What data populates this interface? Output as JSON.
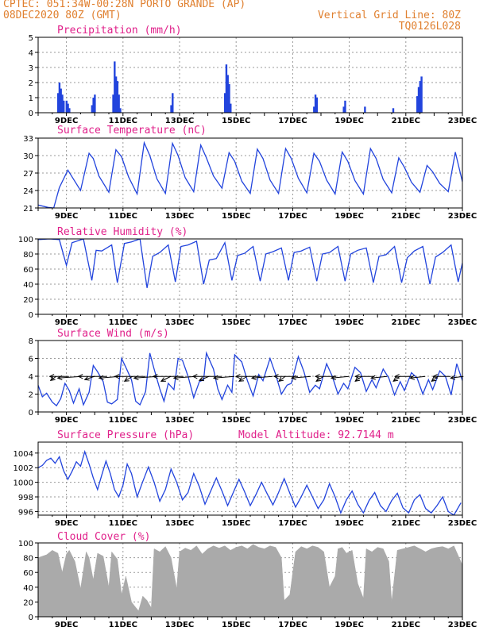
{
  "header": {
    "line1_left": "CPTEC:  051:34W-00:28N  PORTO GRANDE (AP)",
    "line2_left": "08DEC2020 80Z (GMT)",
    "line1_right": "Vertical Grid Line: 80Z",
    "line2_right": "TQ0126L028",
    "model_altitude": "Model Altitude: 92.7144 m"
  },
  "colors": {
    "header": "#e08030",
    "title": "#e0208a",
    "series": "#2244dd",
    "cloud": "#aaaaaa",
    "wind_arrow": "#000000"
  },
  "x_ticks": [
    "9DEC",
    "11DEC",
    "13DEC",
    "15DEC",
    "17DEC",
    "19DEC",
    "21DEC",
    "23DEC"
  ],
  "chart_data": [
    {
      "type": "bar",
      "title": "Precipitation (mm/h)",
      "ylim": [
        0,
        5
      ],
      "yticks": [
        "0",
        "1",
        "2",
        "3",
        "4",
        "5"
      ],
      "x_day": [
        8.7,
        8.75,
        8.8,
        8.85,
        8.9,
        9.0,
        9.05,
        9.1,
        9.9,
        9.95,
        10.0,
        10.65,
        10.7,
        10.75,
        10.8,
        10.85,
        10.9,
        12.7,
        12.75,
        14.6,
        14.65,
        14.7,
        14.75,
        14.8,
        17.75,
        17.8,
        17.85,
        18.8,
        18.85,
        19.55,
        20.55,
        21.4,
        21.45,
        21.5,
        21.55
      ],
      "values": [
        1.3,
        2.0,
        1.6,
        1.2,
        0.8,
        0.8,
        0.6,
        0.3,
        0.5,
        1.0,
        1.2,
        1.2,
        3.4,
        2.4,
        2.1,
        1.2,
        0.3,
        0.5,
        1.3,
        1.3,
        3.2,
        2.5,
        1.9,
        0.6,
        0.4,
        1.2,
        1.0,
        0.4,
        0.8,
        0.4,
        0.3,
        1.1,
        1.7,
        2.1,
        2.4
      ]
    },
    {
      "type": "line",
      "title": "Surface Temperature (nC)",
      "ylim": [
        21,
        33
      ],
      "yticks": [
        "21",
        "24",
        "27",
        "30",
        "33"
      ],
      "x": [
        8.0,
        8.35,
        8.55,
        8.75,
        9.05,
        9.5,
        9.8,
        9.95,
        10.15,
        10.5,
        10.75,
        10.95,
        11.2,
        11.5,
        11.75,
        11.95,
        12.2,
        12.5,
        12.75,
        12.95,
        13.2,
        13.5,
        13.75,
        13.95,
        14.2,
        14.5,
        14.75,
        14.95,
        15.2,
        15.5,
        15.75,
        15.95,
        16.2,
        16.5,
        16.75,
        16.95,
        17.2,
        17.5,
        17.75,
        17.95,
        18.2,
        18.5,
        18.75,
        18.95,
        19.2,
        19.5,
        19.75,
        19.95,
        20.2,
        20.5,
        20.75,
        20.95,
        21.2,
        21.5,
        21.75,
        21.95,
        22.2,
        22.5,
        22.75,
        23.0
      ],
      "values": [
        21.5,
        21.1,
        21.0,
        24.5,
        27.5,
        24.0,
        30.4,
        29.5,
        26.5,
        23.7,
        31.0,
        29.8,
        26.3,
        23.4,
        32.2,
        30.0,
        26.0,
        23.5,
        32.1,
        30.0,
        26.2,
        23.8,
        31.8,
        29.6,
        26.5,
        24.4,
        30.5,
        29.0,
        25.6,
        23.5,
        31.1,
        29.5,
        25.8,
        23.5,
        31.2,
        29.5,
        26.1,
        23.6,
        30.4,
        29.0,
        25.8,
        23.4,
        30.6,
        29.0,
        25.7,
        23.4,
        31.2,
        29.5,
        25.9,
        23.6,
        29.6,
        28.0,
        25.4,
        23.7,
        28.3,
        27.2,
        25.2,
        23.8,
        30.6,
        25.5
      ]
    },
    {
      "type": "line",
      "title": "Relative Humidity (%)",
      "ylim": [
        0,
        100
      ],
      "yticks": [
        "0",
        "20",
        "40",
        "60",
        "80",
        "100"
      ],
      "x": [
        8.0,
        8.4,
        8.75,
        9.0,
        9.2,
        9.6,
        9.9,
        10.05,
        10.25,
        10.6,
        10.8,
        11.05,
        11.3,
        11.6,
        11.85,
        12.05,
        12.3,
        12.6,
        12.85,
        13.05,
        13.3,
        13.6,
        13.85,
        14.05,
        14.3,
        14.6,
        14.85,
        15.05,
        15.3,
        15.6,
        15.85,
        16.05,
        16.3,
        16.6,
        16.85,
        17.05,
        17.3,
        17.6,
        17.85,
        18.05,
        18.3,
        18.6,
        18.85,
        19.05,
        19.3,
        19.6,
        19.85,
        20.05,
        20.3,
        20.6,
        20.85,
        21.05,
        21.3,
        21.6,
        21.85,
        22.05,
        22.3,
        22.6,
        22.85,
        23.0
      ],
      "values": [
        99,
        100,
        99,
        65,
        95,
        100,
        45,
        85,
        84,
        92,
        42,
        94,
        96,
        100,
        35,
        77,
        82,
        92,
        43,
        90,
        92,
        97,
        40,
        72,
        74,
        95,
        45,
        78,
        81,
        90,
        44,
        80,
        83,
        88,
        45,
        82,
        84,
        89,
        44,
        80,
        82,
        90,
        44,
        80,
        85,
        88,
        42,
        77,
        79,
        90,
        42,
        75,
        84,
        90,
        40,
        76,
        82,
        92,
        43,
        68
      ]
    },
    {
      "type": "line",
      "title": "Surface Wind (m/s)",
      "ylim": [
        0,
        8
      ],
      "yticks": [
        "0",
        "2",
        "4",
        "6",
        "8"
      ],
      "x": [
        8.0,
        8.15,
        8.3,
        8.5,
        8.65,
        8.8,
        8.95,
        9.1,
        9.25,
        9.45,
        9.6,
        9.8,
        9.95,
        10.1,
        10.3,
        10.45,
        10.6,
        10.8,
        10.95,
        11.1,
        11.3,
        11.45,
        11.6,
        11.8,
        11.95,
        12.1,
        12.3,
        12.45,
        12.6,
        12.8,
        12.95,
        13.1,
        13.3,
        13.5,
        13.7,
        13.85,
        13.95,
        14.2,
        14.35,
        14.5,
        14.7,
        14.85,
        14.95,
        15.2,
        15.4,
        15.6,
        15.8,
        15.95,
        16.2,
        16.4,
        16.6,
        16.8,
        16.95,
        17.2,
        17.4,
        17.6,
        17.8,
        17.95,
        18.2,
        18.4,
        18.6,
        18.8,
        18.95,
        19.2,
        19.4,
        19.6,
        19.8,
        19.95,
        20.2,
        20.4,
        20.6,
        20.8,
        20.95,
        21.2,
        21.4,
        21.6,
        21.8,
        21.95,
        22.2,
        22.4,
        22.6,
        22.8,
        23.0
      ],
      "values": [
        3.0,
        1.7,
        2.1,
        1.1,
        0.7,
        1.5,
        3.2,
        2.4,
        1.0,
        2.6,
        0.8,
        2.2,
        5.2,
        4.5,
        3.4,
        1.1,
        0.9,
        1.4,
        6.0,
        5.0,
        3.6,
        1.2,
        0.8,
        2.3,
        6.6,
        4.8,
        2.6,
        1.2,
        3.2,
        2.5,
        6.0,
        5.8,
        4.0,
        1.6,
        3.4,
        3.6,
        6.6,
        4.8,
        2.6,
        1.4,
        3.0,
        2.2,
        6.4,
        5.6,
        3.5,
        1.8,
        4.2,
        3.5,
        6.0,
        4.2,
        2.0,
        3.0,
        3.2,
        6.2,
        4.5,
        2.2,
        3.0,
        2.6,
        5.4,
        4.0,
        2.0,
        3.2,
        2.6,
        5.0,
        4.4,
        2.3,
        3.6,
        2.7,
        4.8,
        3.8,
        1.9,
        3.4,
        2.4,
        4.4,
        3.8,
        2.0,
        3.6,
        2.5,
        4.6,
        4.0,
        1.9,
        5.4,
        3.5
      ]
    },
    {
      "type": "line",
      "title": "Surface Pressure (hPa)",
      "ylim": [
        995.5,
        1005.5
      ],
      "yticks": [
        "996",
        "998",
        "1000",
        "1002",
        "1004"
      ],
      "x": [
        8.0,
        8.15,
        8.3,
        8.45,
        8.6,
        8.75,
        8.9,
        9.05,
        9.2,
        9.35,
        9.5,
        9.65,
        9.8,
        9.95,
        10.1,
        10.25,
        10.4,
        10.55,
        10.7,
        10.85,
        11.0,
        11.15,
        11.3,
        11.5,
        11.7,
        11.9,
        12.1,
        12.3,
        12.5,
        12.7,
        12.9,
        13.1,
        13.3,
        13.5,
        13.7,
        13.9,
        14.1,
        14.3,
        14.5,
        14.7,
        14.9,
        15.1,
        15.3,
        15.5,
        15.7,
        15.9,
        16.1,
        16.3,
        16.5,
        16.7,
        16.9,
        17.1,
        17.3,
        17.5,
        17.7,
        17.9,
        18.1,
        18.3,
        18.5,
        18.7,
        18.9,
        19.1,
        19.3,
        19.5,
        19.7,
        19.9,
        20.1,
        20.3,
        20.5,
        20.7,
        20.9,
        21.1,
        21.3,
        21.5,
        21.7,
        21.9,
        22.1,
        22.3,
        22.5,
        22.7,
        22.95
      ],
      "values": [
        1002.0,
        1002.3,
        1003.0,
        1003.3,
        1002.6,
        1003.5,
        1001.6,
        1000.4,
        1001.5,
        1002.8,
        1002.2,
        1004.2,
        1002.5,
        1000.6,
        999.0,
        1001.0,
        1002.9,
        1001.2,
        999.0,
        998.0,
        999.6,
        1002.5,
        1001.2,
        998.0,
        1000.1,
        1002.1,
        1000.0,
        997.4,
        999.0,
        1001.8,
        1000.0,
        997.6,
        998.6,
        1001.2,
        999.4,
        997.0,
        998.8,
        1000.6,
        998.8,
        996.8,
        998.6,
        1000.4,
        998.7,
        996.8,
        998.3,
        1000.0,
        998.4,
        996.9,
        998.6,
        1000.5,
        998.5,
        996.6,
        998.0,
        999.6,
        998.0,
        996.4,
        997.6,
        999.8,
        998.0,
        995.8,
        997.6,
        998.8,
        997.0,
        995.8,
        997.5,
        998.6,
        996.8,
        996.0,
        997.5,
        998.5,
        996.5,
        995.8,
        997.6,
        998.3,
        996.4,
        995.8,
        996.8,
        998.0,
        996.0,
        995.5,
        997.2
      ]
    },
    {
      "type": "area",
      "title": "Cloud Cover (%)",
      "ylim": [
        0,
        100
      ],
      "yticks": [
        "0",
        "20",
        "40",
        "60",
        "80",
        "100"
      ],
      "x": [
        8.0,
        8.3,
        8.5,
        8.7,
        8.85,
        9.0,
        9.1,
        9.3,
        9.5,
        9.7,
        9.8,
        9.95,
        10.1,
        10.3,
        10.5,
        10.6,
        10.8,
        10.95,
        11.1,
        11.3,
        11.4,
        11.55,
        11.7,
        11.85,
        12.0,
        12.1,
        12.3,
        12.5,
        12.7,
        12.9,
        13.0,
        13.2,
        13.4,
        13.6,
        13.8,
        14.0,
        14.2,
        14.4,
        14.6,
        14.8,
        15.0,
        15.2,
        15.4,
        15.6,
        15.8,
        16.0,
        16.2,
        16.4,
        16.6,
        16.7,
        16.9,
        17.1,
        17.3,
        17.5,
        17.7,
        17.9,
        18.1,
        18.3,
        18.5,
        18.6,
        18.75,
        18.9,
        19.1,
        19.3,
        19.5,
        19.6,
        19.8,
        20.0,
        20.2,
        20.4,
        20.5,
        20.7,
        20.9,
        21.1,
        21.3,
        21.5,
        21.7,
        21.9,
        22.1,
        22.3,
        22.5,
        22.7,
        23.0
      ],
      "values": [
        80,
        84,
        90,
        86,
        60,
        85,
        90,
        75,
        38,
        88,
        80,
        50,
        86,
        82,
        40,
        88,
        78,
        30,
        55,
        20,
        15,
        8,
        28,
        22,
        12,
        92,
        88,
        95,
        80,
        38,
        88,
        93,
        90,
        96,
        85,
        92,
        96,
        93,
        96,
        90,
        94,
        96,
        92,
        98,
        94,
        92,
        96,
        94,
        80,
        22,
        30,
        88,
        95,
        92,
        96,
        94,
        88,
        40,
        55,
        92,
        94,
        86,
        90,
        45,
        25,
        92,
        88,
        94,
        92,
        75,
        20,
        90,
        92,
        94,
        96,
        92,
        88,
        92,
        94,
        95,
        92,
        96,
        70
      ]
    },
    {
      "type": "wind_vectors",
      "title": "",
      "x": [
        8.3,
        8.75,
        9.2,
        9.65,
        10.1,
        10.55,
        11.0,
        11.45,
        11.9,
        12.35,
        12.8,
        13.25,
        13.7,
        14.15,
        14.6,
        15.05,
        15.5,
        15.95,
        16.4,
        16.85,
        17.3,
        17.75,
        18.2,
        18.65,
        19.1,
        19.55,
        20.0,
        20.45,
        20.9,
        21.35,
        21.8,
        22.25,
        22.7
      ],
      "u_dx": [
        -0.35,
        -1.2,
        -1.5,
        -0.6,
        -1.8,
        -1.3,
        -0.5,
        -1.9,
        -1.5,
        -0.6,
        -1.9,
        -1.4,
        -0.6,
        -1.8,
        -1.3,
        -0.5,
        -1.5,
        -1.3,
        -0.4,
        -1.5,
        -1.2,
        -0.45,
        -1.3,
        -1.1,
        -0.4,
        -1.2,
        -1.0,
        -0.4,
        -1.1,
        -0.95,
        -0.4,
        -1.1,
        -0.8
      ],
      "v_dy": [
        -0.25,
        0.0,
        -0.1,
        -0.2,
        0.0,
        -0.1,
        -0.3,
        0.0,
        -0.1,
        -0.3,
        0.0,
        -0.1,
        -0.25,
        0.0,
        -0.1,
        -0.3,
        0.0,
        -0.1,
        -0.3,
        0.0,
        -0.1,
        -0.3,
        0.0,
        -0.1,
        -0.3,
        0.0,
        -0.1,
        -0.3,
        0.0,
        -0.1,
        -0.3,
        0.0,
        -0.1
      ]
    }
  ]
}
